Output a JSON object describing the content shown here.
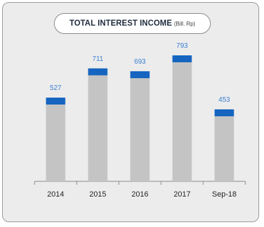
{
  "chart_data": {
    "type": "bar",
    "title": "TOTAL INTEREST INCOME",
    "subtitle": "(Bill. Rp)",
    "categories": [
      "2014",
      "2015",
      "2016",
      "2017",
      "Sep-18"
    ],
    "values": [
      527,
      711,
      693,
      793,
      453
    ],
    "value_labels": [
      "527",
      "711",
      "693",
      "793",
      "453"
    ],
    "xlabel": "",
    "ylabel": "",
    "ylim": [
      0,
      793
    ],
    "grid": false,
    "legend": "none",
    "colors": {
      "bar": "#c4c4c4",
      "bar_cap": "#1565c0",
      "value_label": "#3b7fd1",
      "axis": "#8a8a8a",
      "tick_label": "#222222",
      "background": "#ececec"
    }
  }
}
